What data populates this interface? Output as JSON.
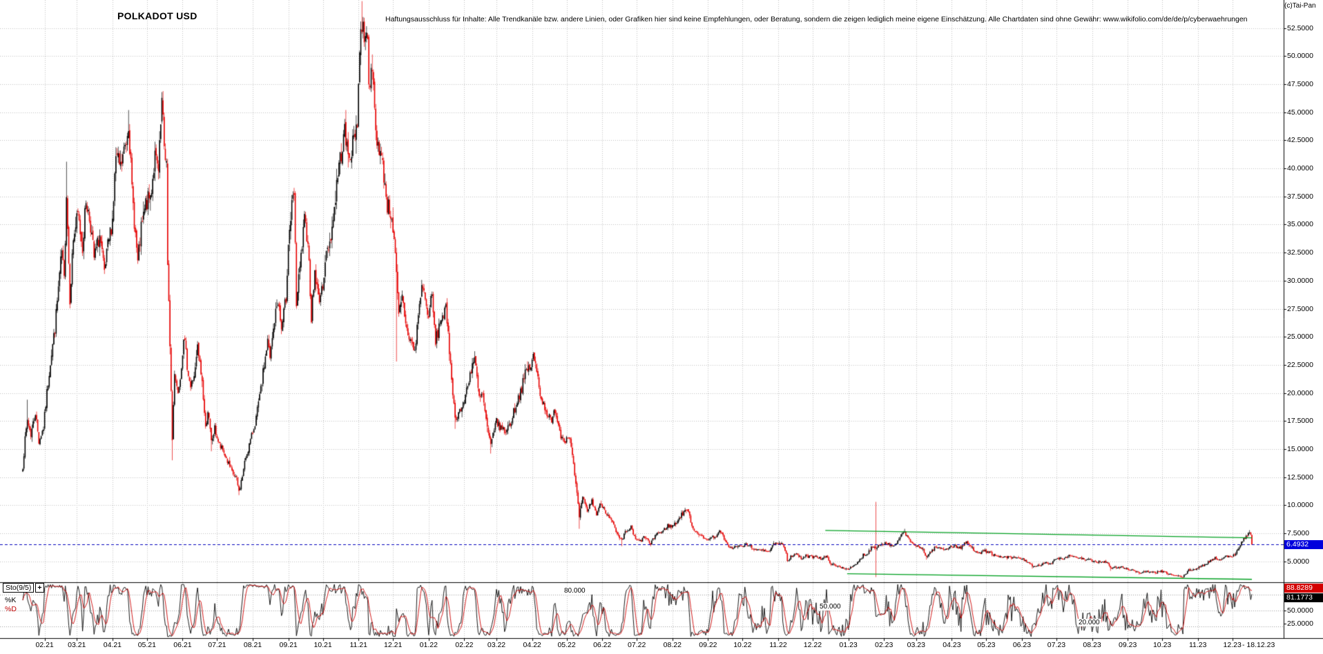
{
  "header": {
    "title": "POLKADOT USD",
    "disclaimer": "Haftungsausschluss für Inhalte: Alle Trendkanäle bzw. andere Linien, oder Grafiken hier sind keine Empfehlungen, oder Beratung, sondern die zeigen lediglich meine eigene Einschätzung. Alle Chartdaten sind ohne Gewähr:  www.wikifolio.com/de/de/p/cyberwaehrungen",
    "copyright": "(c)Tai-Pan"
  },
  "chart_data": {
    "type": "candlestick",
    "symbol": "POLKADOT USD",
    "timeframe": "daily",
    "start_date": "2021-01-13",
    "end_date": "2023-12-18",
    "end_date_label": "- 18.12.23",
    "last_close": 6.4932,
    "last_price_label": "6.4932",
    "up_color": "#000000",
    "down_color": "#e60000",
    "grid": "dotted",
    "dashed_line_price": 6.4932,
    "dashed_line_color": "#0000bb",
    "y_axis": {
      "min": 3.2,
      "max": 55.0,
      "decimals": 4,
      "ticks": [
        52.5,
        50,
        47.5,
        45,
        42.5,
        40,
        37.5,
        35,
        32.5,
        30,
        27.5,
        25,
        22.5,
        20,
        17.5,
        15,
        12.5,
        10,
        7.5,
        5
      ]
    },
    "x_labels": [
      "02.21",
      "03.21",
      "04.21",
      "05.21",
      "06.21",
      "07.21",
      "08.21",
      "09.21",
      "10.21",
      "11.21",
      "12.21",
      "01.22",
      "02.22",
      "03.22",
      "04.22",
      "05.22",
      "06.22",
      "07.22",
      "08.22",
      "09.22",
      "10.22",
      "11.22",
      "12.22",
      "01.23",
      "02.23",
      "03.23",
      "04.23",
      "05.23",
      "06.23",
      "07.23",
      "08.23",
      "09.23",
      "10.23",
      "11.23",
      "12.23"
    ],
    "trend_channel": {
      "color": "#00a020",
      "upper": [
        [
          "2022-12-12",
          7.75
        ],
        [
          "2023-12-18",
          7.1
        ]
      ],
      "lower": [
        [
          "2022-12-31",
          3.9
        ],
        [
          "2023-12-18",
          3.4
        ]
      ]
    },
    "anomaly_candle": {
      "date": "2023-01-25",
      "open": 6.3,
      "high": 10.3,
      "low": 3.6,
      "close": 6.2
    },
    "price_anchors": [
      [
        "2021-01-13",
        13.5
      ],
      [
        "2021-01-15",
        15.8
      ],
      [
        "2021-01-17",
        17.6
      ],
      [
        "2021-01-20",
        16.3
      ],
      [
        "2021-01-24",
        18.3
      ],
      [
        "2021-01-27",
        15.7
      ],
      [
        "2021-01-31",
        16.9
      ],
      [
        "2021-02-03",
        20.0
      ],
      [
        "2021-02-06",
        22.8
      ],
      [
        "2021-02-10",
        25.8
      ],
      [
        "2021-02-14",
        30.5
      ],
      [
        "2021-02-16",
        32.5
      ],
      [
        "2021-02-18",
        30.0
      ],
      [
        "2021-02-20",
        38.0
      ],
      [
        "2021-02-23",
        28.5
      ],
      [
        "2021-02-26",
        33.8
      ],
      [
        "2021-03-02",
        35.8
      ],
      [
        "2021-03-06",
        33.0
      ],
      [
        "2021-03-09",
        37.2
      ],
      [
        "2021-03-13",
        35.0
      ],
      [
        "2021-03-16",
        32.0
      ],
      [
        "2021-03-21",
        34.0
      ],
      [
        "2021-03-25",
        30.5
      ],
      [
        "2021-03-28",
        33.0
      ],
      [
        "2021-04-01",
        35.5
      ],
      [
        "2021-04-04",
        41.0
      ],
      [
        "2021-04-08",
        40.0
      ],
      [
        "2021-04-13",
        42.5
      ],
      [
        "2021-04-15",
        44.3
      ],
      [
        "2021-04-18",
        38.0
      ],
      [
        "2021-04-23",
        31.5
      ],
      [
        "2021-04-26",
        34.5
      ],
      [
        "2021-04-30",
        36.8
      ],
      [
        "2021-05-04",
        37.5
      ],
      [
        "2021-05-08",
        41.0
      ],
      [
        "2021-05-11",
        39.5
      ],
      [
        "2021-05-14",
        45.8
      ],
      [
        "2021-05-16",
        42.0
      ],
      [
        "2021-05-18",
        40.5
      ],
      [
        "2021-05-19",
        31.0
      ],
      [
        "2021-05-21",
        24.5
      ],
      [
        "2021-05-23",
        15.8
      ],
      [
        "2021-05-25",
        22.0
      ],
      [
        "2021-05-28",
        20.0
      ],
      [
        "2021-05-31",
        22.5
      ],
      [
        "2021-06-02",
        25.2
      ],
      [
        "2021-06-05",
        22.5
      ],
      [
        "2021-06-08",
        20.5
      ],
      [
        "2021-06-12",
        22.0
      ],
      [
        "2021-06-14",
        24.0
      ],
      [
        "2021-06-18",
        21.0
      ],
      [
        "2021-06-21",
        16.8
      ],
      [
        "2021-06-23",
        18.5
      ],
      [
        "2021-06-26",
        15.6
      ],
      [
        "2021-06-29",
        16.8
      ],
      [
        "2021-07-03",
        15.3
      ],
      [
        "2021-07-07",
        14.7
      ],
      [
        "2021-07-10",
        13.9
      ],
      [
        "2021-07-14",
        12.9
      ],
      [
        "2021-07-18",
        12.3
      ],
      [
        "2021-07-20",
        11.2
      ],
      [
        "2021-07-23",
        12.6
      ],
      [
        "2021-07-26",
        14.3
      ],
      [
        "2021-07-31",
        16.1
      ],
      [
        "2021-08-04",
        17.8
      ],
      [
        "2021-08-08",
        20.2
      ],
      [
        "2021-08-11",
        22.5
      ],
      [
        "2021-08-14",
        24.6
      ],
      [
        "2021-08-16",
        23.0
      ],
      [
        "2021-08-20",
        26.5
      ],
      [
        "2021-08-23",
        28.3
      ],
      [
        "2021-08-26",
        25.6
      ],
      [
        "2021-08-30",
        28.5
      ],
      [
        "2021-09-01",
        33.5
      ],
      [
        "2021-09-04",
        36.5
      ],
      [
        "2021-09-06",
        37.6
      ],
      [
        "2021-09-08",
        28.0
      ],
      [
        "2021-09-11",
        31.0
      ],
      [
        "2021-09-15",
        35.2
      ],
      [
        "2021-09-18",
        33.8
      ],
      [
        "2021-09-21",
        26.8
      ],
      [
        "2021-09-24",
        30.8
      ],
      [
        "2021-09-27",
        28.5
      ],
      [
        "2021-09-30",
        28.9
      ],
      [
        "2021-10-03",
        31.8
      ],
      [
        "2021-10-07",
        33.5
      ],
      [
        "2021-10-10",
        35.5
      ],
      [
        "2021-10-14",
        39.5
      ],
      [
        "2021-10-17",
        41.5
      ],
      [
        "2021-10-20",
        43.2
      ],
      [
        "2021-10-23",
        41.0
      ],
      [
        "2021-10-27",
        42.0
      ],
      [
        "2021-10-31",
        44.5
      ],
      [
        "2021-11-02",
        50.5
      ],
      [
        "2021-11-04",
        53.0
      ],
      [
        "2021-11-06",
        52.0
      ],
      [
        "2021-11-08",
        52.8
      ],
      [
        "2021-11-10",
        48.5
      ],
      [
        "2021-11-14",
        47.5
      ],
      [
        "2021-11-16",
        43.0
      ],
      [
        "2021-11-19",
        42.0
      ],
      [
        "2021-11-23",
        39.5
      ],
      [
        "2021-11-26",
        36.8
      ],
      [
        "2021-11-30",
        35.8
      ],
      [
        "2021-12-03",
        32.0
      ],
      [
        "2021-12-06",
        26.8
      ],
      [
        "2021-12-09",
        28.5
      ],
      [
        "2021-12-13",
        25.6
      ],
      [
        "2021-12-17",
        24.5
      ],
      [
        "2021-12-20",
        23.6
      ],
      [
        "2021-12-24",
        28.0
      ],
      [
        "2021-12-27",
        29.8
      ],
      [
        "2021-12-31",
        26.8
      ],
      [
        "2022-01-04",
        28.5
      ],
      [
        "2022-01-07",
        24.5
      ],
      [
        "2022-01-12",
        26.8
      ],
      [
        "2022-01-16",
        27.3
      ],
      [
        "2022-01-21",
        21.5
      ],
      [
        "2022-01-24",
        17.6
      ],
      [
        "2022-01-27",
        18.3
      ],
      [
        "2022-01-31",
        18.8
      ],
      [
        "2022-02-04",
        20.8
      ],
      [
        "2022-02-08",
        22.6
      ],
      [
        "2022-02-10",
        23.0
      ],
      [
        "2022-02-14",
        19.5
      ],
      [
        "2022-02-17",
        19.8
      ],
      [
        "2022-02-21",
        16.8
      ],
      [
        "2022-02-24",
        15.2
      ],
      [
        "2022-02-28",
        17.5
      ],
      [
        "2022-03-04",
        17.0
      ],
      [
        "2022-03-08",
        16.6
      ],
      [
        "2022-03-13",
        17.2
      ],
      [
        "2022-03-18",
        19.0
      ],
      [
        "2022-03-23",
        20.5
      ],
      [
        "2022-03-27",
        22.0
      ],
      [
        "2022-03-31",
        22.4
      ],
      [
        "2022-04-02",
        23.2
      ],
      [
        "2022-04-05",
        22.0
      ],
      [
        "2022-04-09",
        19.5
      ],
      [
        "2022-04-13",
        18.5
      ],
      [
        "2022-04-18",
        17.3
      ],
      [
        "2022-04-21",
        18.6
      ],
      [
        "2022-04-26",
        16.2
      ],
      [
        "2022-04-30",
        15.9
      ],
      [
        "2022-05-04",
        16.2
      ],
      [
        "2022-05-06",
        14.3
      ],
      [
        "2022-05-09",
        11.8
      ],
      [
        "2022-05-12",
        9.0
      ],
      [
        "2022-05-15",
        10.6
      ],
      [
        "2022-05-19",
        9.5
      ],
      [
        "2022-05-23",
        10.4
      ],
      [
        "2022-05-27",
        9.2
      ],
      [
        "2022-05-31",
        10.2
      ],
      [
        "2022-06-03",
        9.6
      ],
      [
        "2022-06-07",
        9.0
      ],
      [
        "2022-06-11",
        8.2
      ],
      [
        "2022-06-14",
        7.3
      ],
      [
        "2022-06-18",
        6.8
      ],
      [
        "2022-06-21",
        7.6
      ],
      [
        "2022-06-26",
        8.0
      ],
      [
        "2022-06-30",
        6.9
      ],
      [
        "2022-07-04",
        6.8
      ],
      [
        "2022-07-08",
        7.2
      ],
      [
        "2022-07-13",
        6.5
      ],
      [
        "2022-07-18",
        7.5
      ],
      [
        "2022-07-23",
        7.6
      ],
      [
        "2022-07-28",
        8.2
      ],
      [
        "2022-07-31",
        8.1
      ],
      [
        "2022-08-04",
        8.4
      ],
      [
        "2022-08-08",
        9.0
      ],
      [
        "2022-08-13",
        9.7
      ],
      [
        "2022-08-16",
        9.0
      ],
      [
        "2022-08-19",
        7.9
      ],
      [
        "2022-08-24",
        7.5
      ],
      [
        "2022-08-28",
        7.0
      ],
      [
        "2022-08-31",
        7.0
      ],
      [
        "2022-09-04",
        7.1
      ],
      [
        "2022-09-08",
        7.3
      ],
      [
        "2022-09-12",
        7.7
      ],
      [
        "2022-09-16",
        6.7
      ],
      [
        "2022-09-21",
        6.2
      ],
      [
        "2022-09-26",
        6.3
      ],
      [
        "2022-09-30",
        6.35
      ],
      [
        "2022-10-04",
        6.5
      ],
      [
        "2022-10-09",
        6.3
      ],
      [
        "2022-10-13",
        5.9
      ],
      [
        "2022-10-18",
        6.1
      ],
      [
        "2022-10-24",
        5.9
      ],
      [
        "2022-10-29",
        6.6
      ],
      [
        "2022-10-31",
        6.5
      ],
      [
        "2022-11-04",
        6.55
      ],
      [
        "2022-11-08",
        5.8
      ],
      [
        "2022-11-09",
        5.05
      ],
      [
        "2022-11-12",
        5.45
      ],
      [
        "2022-11-16",
        5.7
      ],
      [
        "2022-11-21",
        5.25
      ],
      [
        "2022-11-25",
        5.45
      ],
      [
        "2022-11-30",
        5.4
      ],
      [
        "2022-12-04",
        5.5
      ],
      [
        "2022-12-08",
        5.25
      ],
      [
        "2022-12-13",
        5.4
      ],
      [
        "2022-12-17",
        4.8
      ],
      [
        "2022-12-22",
        4.55
      ],
      [
        "2022-12-27",
        4.45
      ],
      [
        "2022-12-31",
        4.33
      ],
      [
        "2023-01-04",
        4.45
      ],
      [
        "2023-01-08",
        4.75
      ],
      [
        "2023-01-12",
        5.25
      ],
      [
        "2023-01-14",
        5.6
      ],
      [
        "2023-01-18",
        5.7
      ],
      [
        "2023-01-21",
        6.3
      ],
      [
        "2023-01-25",
        6.25
      ],
      [
        "2023-01-29",
        6.55
      ],
      [
        "2023-01-31",
        6.45
      ],
      [
        "2023-02-02",
        6.7
      ],
      [
        "2023-02-06",
        6.45
      ],
      [
        "2023-02-10",
        6.3
      ],
      [
        "2023-02-15",
        7.1
      ],
      [
        "2023-02-19",
        7.7
      ],
      [
        "2023-02-22",
        7.0
      ],
      [
        "2023-02-26",
        6.6
      ],
      [
        "2023-02-28",
        6.45
      ],
      [
        "2023-03-03",
        6.2
      ],
      [
        "2023-03-07",
        6.1
      ],
      [
        "2023-03-10",
        5.35
      ],
      [
        "2023-03-14",
        5.9
      ],
      [
        "2023-03-18",
        6.25
      ],
      [
        "2023-03-22",
        6.15
      ],
      [
        "2023-03-26",
        6.1
      ],
      [
        "2023-03-31",
        6.3
      ],
      [
        "2023-04-04",
        6.35
      ],
      [
        "2023-04-09",
        6.2
      ],
      [
        "2023-04-14",
        6.75
      ],
      [
        "2023-04-17",
        6.35
      ],
      [
        "2023-04-21",
        5.95
      ],
      [
        "2023-04-26",
        5.8
      ],
      [
        "2023-04-30",
        5.9
      ],
      [
        "2023-05-05",
        5.75
      ],
      [
        "2023-05-09",
        5.45
      ],
      [
        "2023-05-14",
        5.35
      ],
      [
        "2023-05-18",
        5.4
      ],
      [
        "2023-05-23",
        5.3
      ],
      [
        "2023-05-28",
        5.35
      ],
      [
        "2023-05-31",
        5.25
      ],
      [
        "2023-06-04",
        5.1
      ],
      [
        "2023-06-07",
        4.9
      ],
      [
        "2023-06-10",
        4.5
      ],
      [
        "2023-06-14",
        4.55
      ],
      [
        "2023-06-18",
        4.7
      ],
      [
        "2023-06-22",
        4.85
      ],
      [
        "2023-06-26",
        4.8
      ],
      [
        "2023-06-30",
        5.25
      ],
      [
        "2023-07-04",
        5.3
      ],
      [
        "2023-07-08",
        5.25
      ],
      [
        "2023-07-13",
        5.6
      ],
      [
        "2023-07-17",
        5.35
      ],
      [
        "2023-07-21",
        5.3
      ],
      [
        "2023-07-25",
        5.15
      ],
      [
        "2023-07-31",
        5.1
      ],
      [
        "2023-08-04",
        4.95
      ],
      [
        "2023-08-09",
        5.0
      ],
      [
        "2023-08-14",
        4.9
      ],
      [
        "2023-08-17",
        4.4
      ],
      [
        "2023-08-22",
        4.45
      ],
      [
        "2023-08-26",
        4.5
      ],
      [
        "2023-08-31",
        4.35
      ],
      [
        "2023-09-05",
        4.25
      ],
      [
        "2023-09-11",
        3.95
      ],
      [
        "2023-09-16",
        4.1
      ],
      [
        "2023-09-21",
        4.0
      ],
      [
        "2023-09-26",
        4.05
      ],
      [
        "2023-09-30",
        4.1
      ],
      [
        "2023-10-04",
        4.0
      ],
      [
        "2023-10-09",
        3.8
      ],
      [
        "2023-10-14",
        3.7
      ],
      [
        "2023-10-19",
        3.6
      ],
      [
        "2023-10-24",
        4.2
      ],
      [
        "2023-10-29",
        4.3
      ],
      [
        "2023-10-31",
        4.35
      ],
      [
        "2023-11-05",
        4.6
      ],
      [
        "2023-11-09",
        4.85
      ],
      [
        "2023-11-13",
        5.15
      ],
      [
        "2023-11-16",
        5.3
      ],
      [
        "2023-11-20",
        5.15
      ],
      [
        "2023-11-24",
        5.45
      ],
      [
        "2023-11-30",
        5.35
      ],
      [
        "2023-12-04",
        5.8
      ],
      [
        "2023-12-08",
        6.5
      ],
      [
        "2023-12-11",
        7.0
      ],
      [
        "2023-12-14",
        7.35
      ],
      [
        "2023-12-16",
        7.55
      ],
      [
        "2023-12-17",
        7.25
      ],
      [
        "2023-12-18",
        6.4932
      ]
    ],
    "extreme_overrides": [
      {
        "d": "2021-01-17",
        "h": 19.4
      },
      {
        "d": "2021-02-20",
        "h": 40.6
      },
      {
        "d": "2021-04-15",
        "h": 45.2
      },
      {
        "d": "2021-05-14",
        "h": 46.8
      },
      {
        "d": "2021-05-23",
        "l": 14.0
      },
      {
        "d": "2021-06-26",
        "l": 14.8
      },
      {
        "d": "2021-07-20",
        "l": 10.9
      },
      {
        "d": "2021-11-04",
        "h": 54.9
      },
      {
        "d": "2021-12-04",
        "l": 22.8
      },
      {
        "d": "2022-01-24",
        "l": 16.8
      },
      {
        "d": "2022-02-24",
        "l": 14.6
      },
      {
        "d": "2022-05-12",
        "l": 7.9
      },
      {
        "d": "2022-06-18",
        "l": 6.35
      },
      {
        "d": "2022-11-09",
        "l": 4.95
      },
      {
        "d": "2022-12-30",
        "l": 4.2
      },
      {
        "d": "2023-02-19",
        "h": 7.9
      },
      {
        "d": "2023-03-10",
        "l": 5.15
      },
      {
        "d": "2023-06-10",
        "l": 4.35
      },
      {
        "d": "2023-08-17",
        "l": 4.15
      },
      {
        "d": "2023-10-19",
        "l": 3.56
      },
      {
        "d": "2023-12-16",
        "h": 7.78
      }
    ]
  },
  "indicator": {
    "name": "Sto(9/5)",
    "expand_label": "+",
    "k_label": "%K",
    "d_label": "%D",
    "k_color": "#000000",
    "d_color": "#cc0000",
    "k_period": 9,
    "d_period": 5,
    "k_value": 81.1773,
    "d_value": 88.8289,
    "k_value_label": "81.1773",
    "d_value_label": "88.8289",
    "levels": [
      {
        "value": 80,
        "label": "80.000"
      },
      {
        "value": 50,
        "label": "50.000"
      },
      {
        "value": 20,
        "label": "20.000"
      }
    ],
    "axis_ticks": [
      {
        "value": 50,
        "label": "50.0000"
      },
      {
        "value": 25,
        "label": "25.0000"
      }
    ]
  }
}
